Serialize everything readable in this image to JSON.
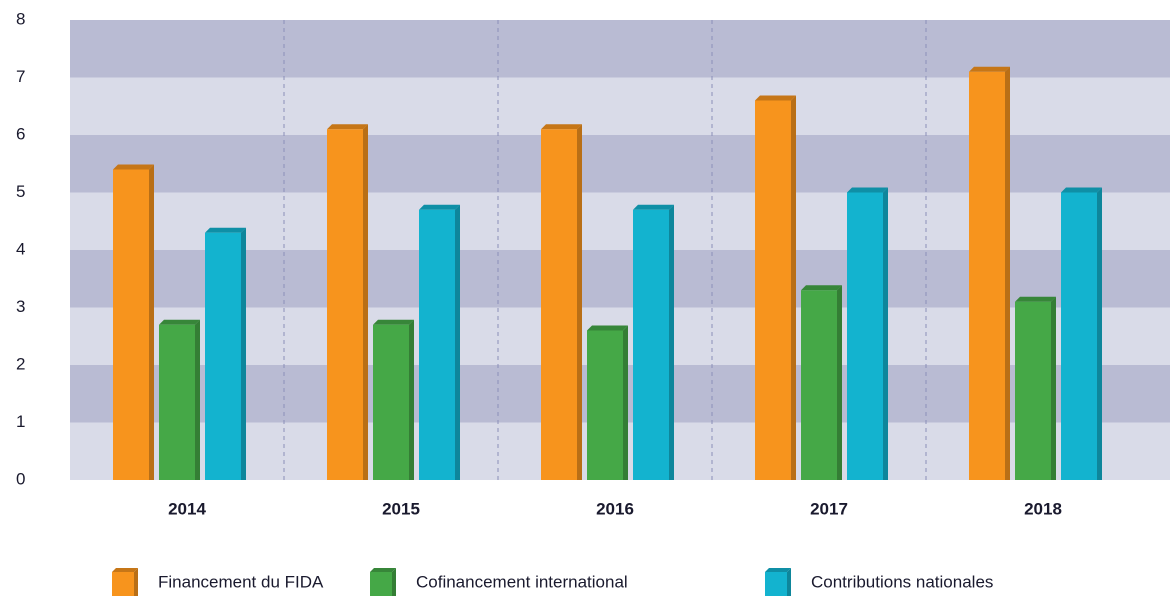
{
  "chart_data": {
    "type": "bar",
    "categories": [
      "2014",
      "2015",
      "2016",
      "2017",
      "2018"
    ],
    "series": [
      {
        "name": "Financement du FIDA",
        "color": "#f7941d",
        "values": [
          5.4,
          6.1,
          6.1,
          6.6,
          7.1
        ]
      },
      {
        "name": "Cofinancement international",
        "color": "#45a847",
        "values": [
          2.7,
          2.7,
          2.6,
          3.3,
          3.1
        ]
      },
      {
        "name": "Contributions nationales",
        "color": "#13b3cf",
        "values": [
          4.3,
          4.7,
          4.7,
          5.0,
          5.0
        ]
      }
    ],
    "ylim": [
      0,
      8
    ],
    "yticks": [
      0,
      1,
      2,
      3,
      4,
      5,
      6,
      7,
      8
    ],
    "grid": true,
    "legend": "bottom"
  }
}
